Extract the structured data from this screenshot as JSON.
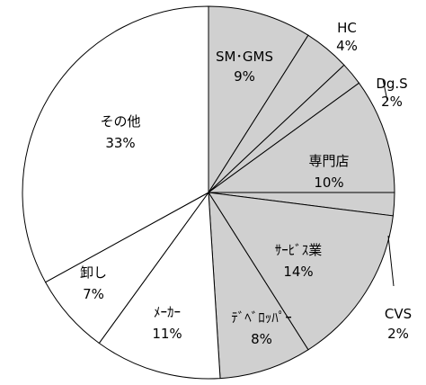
{
  "chart_data": {
    "type": "pie",
    "start_angle_deg": 0,
    "direction": "clockwise",
    "slices": [
      {
        "label": "SM･GMS",
        "value": 9,
        "value_text": "9%",
        "color": "#d0d0d0"
      },
      {
        "label": "HC",
        "value": 4,
        "value_text": "4%",
        "color": "#d0d0d0"
      },
      {
        "label": "Dg.S",
        "value": 2,
        "value_text": "2%",
        "color": "#d0d0d0"
      },
      {
        "label": "専門店",
        "value": 10,
        "value_text": "10%",
        "color": "#d0d0d0"
      },
      {
        "label": "CVS",
        "value": 2,
        "value_text": "2%",
        "color": "#d0d0d0"
      },
      {
        "label": "ｻｰﾋﾞｽ業",
        "value": 14,
        "value_text": "14%",
        "color": "#d0d0d0"
      },
      {
        "label": "ﾃﾞﾍﾞﾛｯﾊﾟｰ",
        "value": 8,
        "value_text": "8%",
        "color": "#d0d0d0"
      },
      {
        "label": "ﾒｰｶｰ",
        "value": 11,
        "value_text": "11%",
        "color": "#ffffff"
      },
      {
        "label": "卸し",
        "value": 7,
        "value_text": "7%",
        "color": "#ffffff"
      },
      {
        "label": "その他",
        "value": 33,
        "value_text": "33%",
        "color": "#ffffff"
      }
    ]
  }
}
